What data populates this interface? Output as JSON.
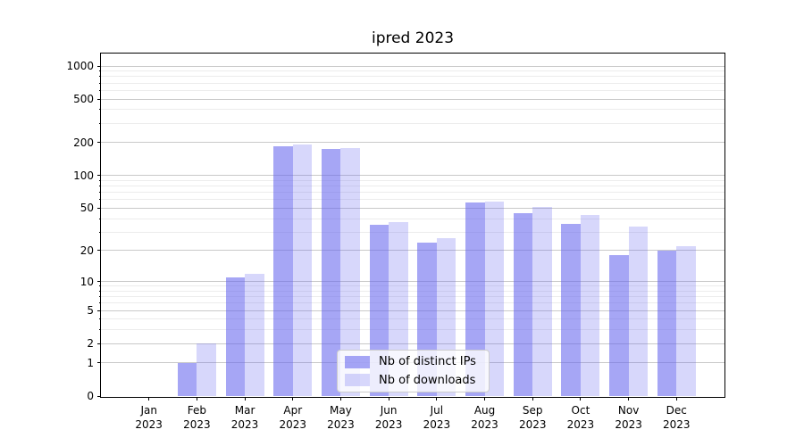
{
  "title": "ipred 2023",
  "chart_data": {
    "type": "bar",
    "title": "ipred 2023",
    "categories": [
      "Jan",
      "Feb",
      "Mar",
      "Apr",
      "May",
      "Jun",
      "Jul",
      "Aug",
      "Sep",
      "Oct",
      "Nov",
      "Dec"
    ],
    "x_tick_line2": "2023",
    "series": [
      {
        "name": "Nb of distinct IPs",
        "color": "#6666ee",
        "alpha": 0.58,
        "values": [
          0,
          1,
          11,
          185,
          175,
          35,
          24,
          57,
          45,
          36,
          18,
          20
        ]
      },
      {
        "name": "Nb of downloads",
        "color": "#6666ee",
        "alpha": 0.26,
        "values": [
          0,
          2,
          12,
          192,
          177,
          37,
          26,
          58,
          51,
          43,
          34,
          22
        ]
      }
    ],
    "yscale": "log10(value+1)",
    "ylim": [
      0,
      1000
    ],
    "yticks": [
      0,
      1,
      2,
      5,
      10,
      20,
      50,
      100,
      200,
      500,
      1000
    ],
    "yticks_minor": [
      3,
      4,
      6,
      7,
      8,
      9,
      30,
      40,
      60,
      70,
      80,
      90,
      300,
      400,
      600,
      700,
      800,
      900
    ],
    "grid": true,
    "legend_position": "lower center",
    "xlabel": "",
    "ylabel": ""
  },
  "colors": {
    "bar_base": "#6666ee",
    "grid_major": "#c9c9c9",
    "grid_minor": "#ececec",
    "axis": "#000000",
    "legend_border": "#cccccc",
    "background": "#ffffff"
  }
}
